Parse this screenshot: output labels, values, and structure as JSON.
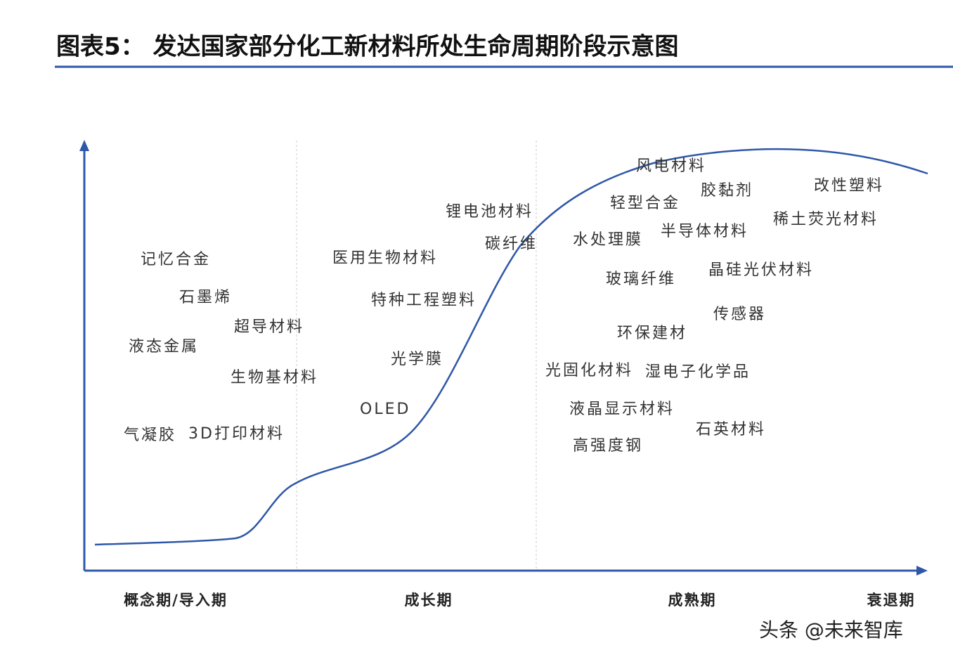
{
  "header": {
    "title": "图表5：  发达国家部分化工新材料所处生命周期阶段示意图"
  },
  "stages": [
    {
      "label": "概念期/导入期",
      "items": [
        "记忆合金",
        "石墨烯",
        "超导材料",
        "液态金属",
        "生物基材料",
        "气凝胶",
        "3D打印材料"
      ]
    },
    {
      "label": "成长期",
      "items": [
        "医用生物材料",
        "特种工程塑料",
        "光学膜",
        "OLED",
        "锂电池材料",
        "碳纤维"
      ]
    },
    {
      "label": "成熟期",
      "items": [
        "风电材料",
        "轻型合金",
        "胶黏剂",
        "水处理膜",
        "半导体材料",
        "玻璃纤维",
        "晶硅光伏材料",
        "传感器",
        "环保建材",
        "光固化材料",
        "湿电子化学品",
        "液晶显示材料",
        "石英材料",
        "高强度钢"
      ]
    },
    {
      "label": "衰退期",
      "items": [
        "改性塑料",
        "稀土荧光材料"
      ]
    }
  ],
  "watermark": "头条 @未来智库"
}
